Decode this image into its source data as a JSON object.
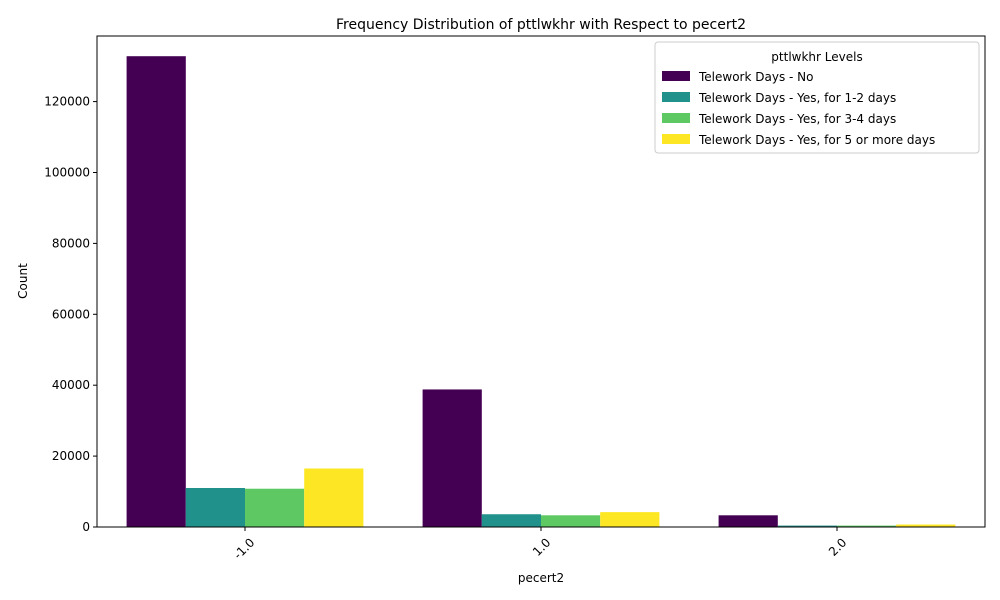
{
  "chart_data": {
    "type": "bar",
    "title": "Frequency Distribution of pttlwkhr with Respect to pecert2",
    "xlabel": "pecert2",
    "ylabel": "Count",
    "categories": [
      "-1.0",
      "1.0",
      "2.0"
    ],
    "ylim": [
      0,
      138500
    ],
    "yticks": [
      0,
      20000,
      40000,
      60000,
      80000,
      100000,
      120000
    ],
    "grid": false,
    "legend": {
      "title": "pttlwkhr Levels",
      "position": "top-right"
    },
    "series": [
      {
        "name": "Telework Days - No",
        "color": "#440154",
        "values": [
          132800,
          38800,
          3300
        ]
      },
      {
        "name": "Telework Days - Yes, for 1-2 days",
        "color": "#21918c",
        "values": [
          11000,
          3600,
          400
        ]
      },
      {
        "name": "Telework Days - Yes, for 3-4 days",
        "color": "#5ec962",
        "values": [
          10800,
          3300,
          400
        ]
      },
      {
        "name": "Telework Days - Yes, for 5 or more days",
        "color": "#fde725",
        "values": [
          16500,
          4200,
          700
        ]
      }
    ]
  }
}
